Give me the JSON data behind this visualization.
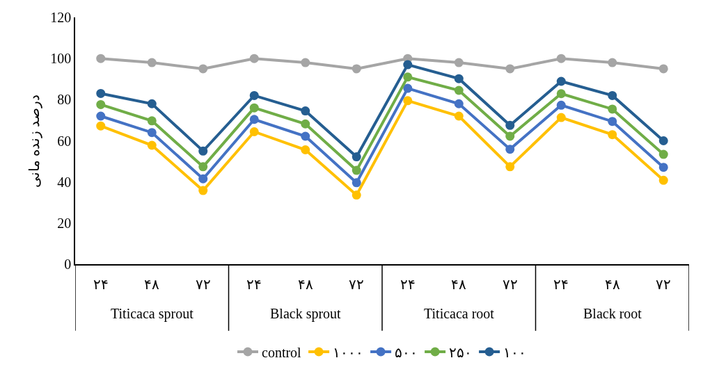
{
  "chart_data": {
    "type": "line",
    "ylabel": "درصد زنده مانی",
    "categories": [
      "۲۴",
      "۴۸",
      "۷۲",
      "۲۴",
      "۴۸",
      "۷۲",
      "۲۴",
      "۴۸",
      "۷۲",
      "۲۴",
      "۴۸",
      "۷۲"
    ],
    "annotations": [
      "Titicaca sprout",
      "Black sprout",
      "Titicaca root",
      "Black root"
    ],
    "series": [
      {
        "name": "control",
        "color": "#a5a5a5",
        "values": [
          100,
          98,
          95,
          100,
          98,
          95,
          100,
          98,
          95,
          100,
          98,
          95
        ]
      },
      {
        "name": "۱۰۰۰",
        "color": "#ffc000",
        "values": [
          67.2,
          57.8,
          35.8,
          64.4,
          55.6,
          33.6,
          79.5,
          72,
          47.4,
          71.3,
          63,
          40.8
        ]
      },
      {
        "name": "۵۰۰",
        "color": "#4472c4",
        "values": [
          72,
          64,
          41.5,
          70.4,
          62.2,
          39.6,
          85.5,
          78,
          55.9,
          77.3,
          69.4,
          47.1
        ]
      },
      {
        "name": "۲۵۰",
        "color": "#70ad47",
        "values": [
          77.6,
          69.7,
          47.4,
          76,
          68.2,
          45.6,
          91,
          84.5,
          62.2,
          82.9,
          75.4,
          53.4
        ]
      },
      {
        "name": "۱۰۰",
        "color": "#255e91",
        "values": [
          83,
          78,
          55,
          82,
          74.5,
          52.2,
          97,
          90.2,
          67.5,
          88.9,
          82,
          60
        ]
      }
    ],
    "ylim": [
      0,
      120
    ],
    "yticks": [
      0,
      20,
      40,
      60,
      80,
      100,
      120
    ],
    "grid": false,
    "legend": "bottom",
    "marker": "circle",
    "line_style": "solid"
  }
}
